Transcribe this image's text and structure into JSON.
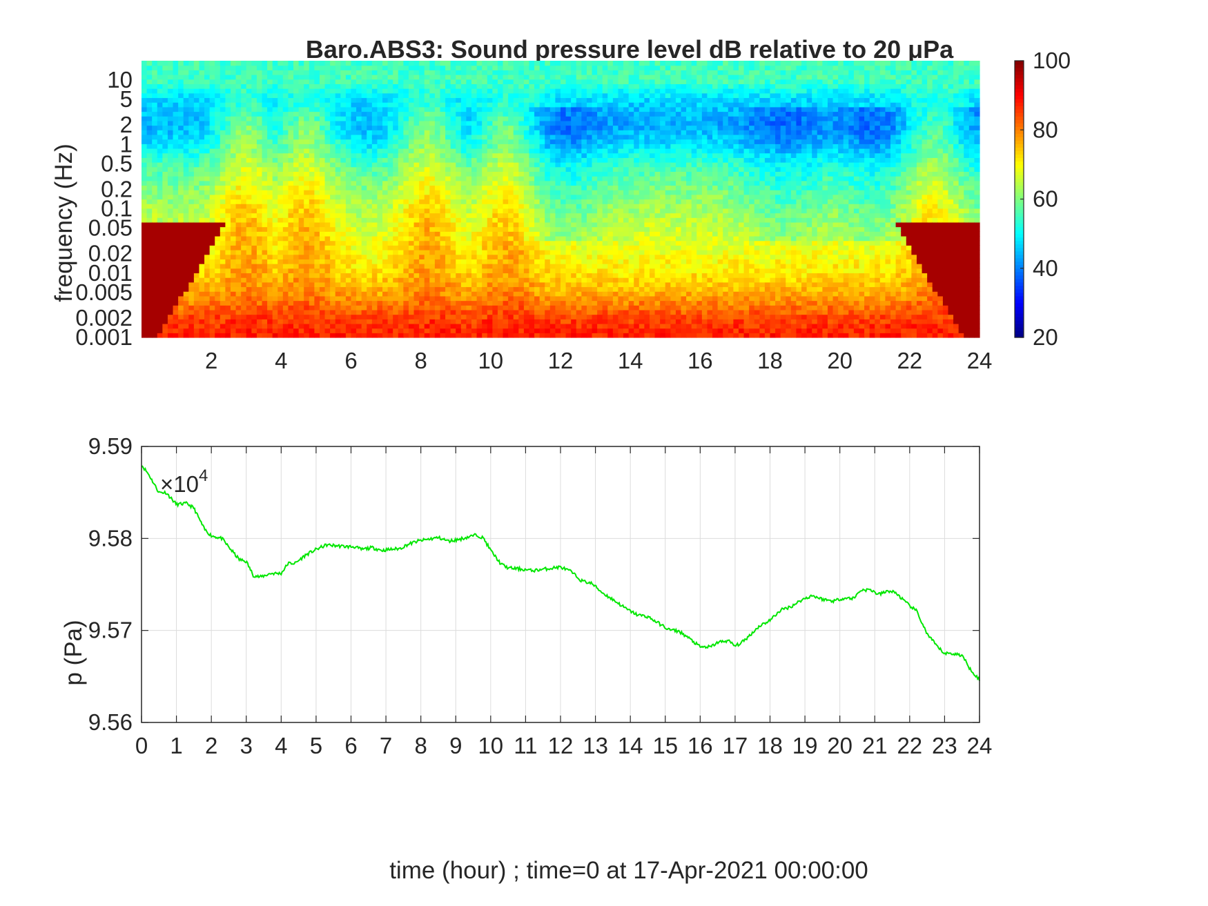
{
  "colors": {
    "trace": "#00e600",
    "axes": "#262626",
    "grid": "#dcdcdc"
  },
  "chart_data": [
    {
      "type": "heatmap",
      "title": "Baro.ABS3: Sound pressure level dB relative to 20 μPa",
      "xlabel": "",
      "ylabel": "frequency (Hz)",
      "x_range": [
        0,
        24
      ],
      "x_ticks": [
        2,
        4,
        6,
        8,
        10,
        12,
        14,
        16,
        18,
        20,
        22,
        24
      ],
      "y_scale": "log",
      "y_range": [
        0.001,
        20
      ],
      "y_ticks": [
        0.001,
        0.002,
        0.005,
        0.01,
        0.02,
        0.05,
        0.1,
        0.2,
        0.5,
        1,
        2,
        5,
        10
      ],
      "y_tick_labels": [
        "0.001",
        "0.002",
        "0.005",
        "0.01",
        "0.02",
        "0.05",
        "0.1",
        "0.2",
        "0.5",
        "1",
        "2",
        "5",
        "10"
      ],
      "colormap": "jet",
      "colorbar": {
        "range": [
          20,
          100
        ],
        "ticks": [
          20,
          40,
          60,
          80,
          100
        ]
      },
      "level_profile": {
        "frequency_hz": [
          0.001,
          0.002,
          0.005,
          0.01,
          0.02,
          0.05,
          0.1,
          0.2,
          0.5,
          1,
          2,
          5,
          10,
          20
        ],
        "typical_db": [
          88,
          85,
          76,
          72,
          69,
          66,
          63,
          60,
          55,
          48,
          44,
          47,
          55,
          55
        ],
        "active_hour_db": [
          88,
          86,
          80,
          78,
          77,
          76,
          74,
          71,
          66,
          62,
          60,
          53,
          55,
          55
        ]
      },
      "active_hours": [
        3,
        4.7,
        8.2,
        10.5,
        22.8
      ],
      "quiet_hours": [
        12,
        18.5,
        21,
        23.6
      ]
    },
    {
      "type": "line",
      "title": "",
      "xlabel": "time (hour) ; time=0 at 17-Apr-2021 00:00:00",
      "ylabel": "p (Pa)",
      "y_exponent_label": "×10",
      "y_exponent": "4",
      "x_range": [
        0,
        24
      ],
      "x_ticks": [
        0,
        1,
        2,
        3,
        4,
        5,
        6,
        7,
        8,
        9,
        10,
        11,
        12,
        13,
        14,
        15,
        16,
        17,
        18,
        19,
        20,
        21,
        22,
        23,
        24
      ],
      "y_range": [
        9.56,
        9.59
      ],
      "y_ticks": [
        "9.56",
        "9.57",
        "9.58",
        "9.59"
      ],
      "grid": true,
      "series": [
        {
          "x": [
            0,
            0.2,
            0.5,
            0.7,
            1.0,
            1.3,
            1.5,
            1.8,
            2.0,
            2.3,
            2.6,
            2.8,
            3.0,
            3.2,
            3.4,
            3.7,
            4.0,
            4.2,
            4.4,
            4.7,
            5.0,
            5.3,
            5.6,
            5.9,
            6.1,
            6.3,
            6.6,
            6.9,
            7.1,
            7.4,
            7.6,
            7.9,
            8.2,
            8.5,
            8.8,
            9.1,
            9.4,
            9.6,
            9.8,
            10.0,
            10.3,
            10.5,
            10.8,
            11.2,
            11.6,
            12.0,
            12.3,
            12.6,
            12.9,
            13.2,
            13.6,
            13.9,
            14.2,
            14.5,
            14.8,
            15.1,
            15.4,
            15.7,
            16.0,
            16.3,
            16.5,
            16.8,
            17.0,
            17.2,
            17.4,
            17.7,
            18.0,
            18.3,
            18.6,
            18.9,
            19.2,
            19.5,
            19.8,
            20.1,
            20.4,
            20.6,
            20.9,
            21.1,
            21.4,
            21.6,
            21.9,
            22.2,
            22.5,
            22.8,
            23.0,
            23.2,
            23.5,
            23.7,
            24.0
          ],
          "y": [
            9.588,
            9.587,
            9.585,
            9.585,
            9.5837,
            9.5838,
            9.5833,
            9.581,
            9.5803,
            9.58,
            9.5786,
            9.5777,
            9.5775,
            9.576,
            9.5758,
            9.5762,
            9.5762,
            9.5773,
            9.5773,
            9.5782,
            9.5788,
            9.5793,
            9.5792,
            9.5791,
            9.5791,
            9.5788,
            9.579,
            9.5787,
            9.5788,
            9.5789,
            9.5793,
            9.5797,
            9.5799,
            9.5801,
            9.5797,
            9.5799,
            9.5802,
            9.5804,
            9.58,
            9.5787,
            9.5772,
            9.5768,
            9.5767,
            9.5765,
            9.5767,
            9.5769,
            9.5764,
            9.5754,
            9.5751,
            9.5741,
            9.5731,
            9.5723,
            9.5717,
            9.5715,
            9.5708,
            9.5701,
            9.5699,
            9.5691,
            9.5682,
            9.5682,
            9.5687,
            9.5689,
            9.5683,
            9.5687,
            9.5694,
            9.5705,
            9.5711,
            9.5722,
            9.5726,
            9.5733,
            9.5738,
            9.5734,
            9.5732,
            9.5735,
            9.5735,
            9.5744,
            9.5744,
            9.5739,
            9.5743,
            9.5741,
            9.573,
            9.5721,
            9.5696,
            9.5682,
            9.5675,
            9.5675,
            9.5673,
            9.566,
            9.5646
          ]
        }
      ]
    }
  ]
}
